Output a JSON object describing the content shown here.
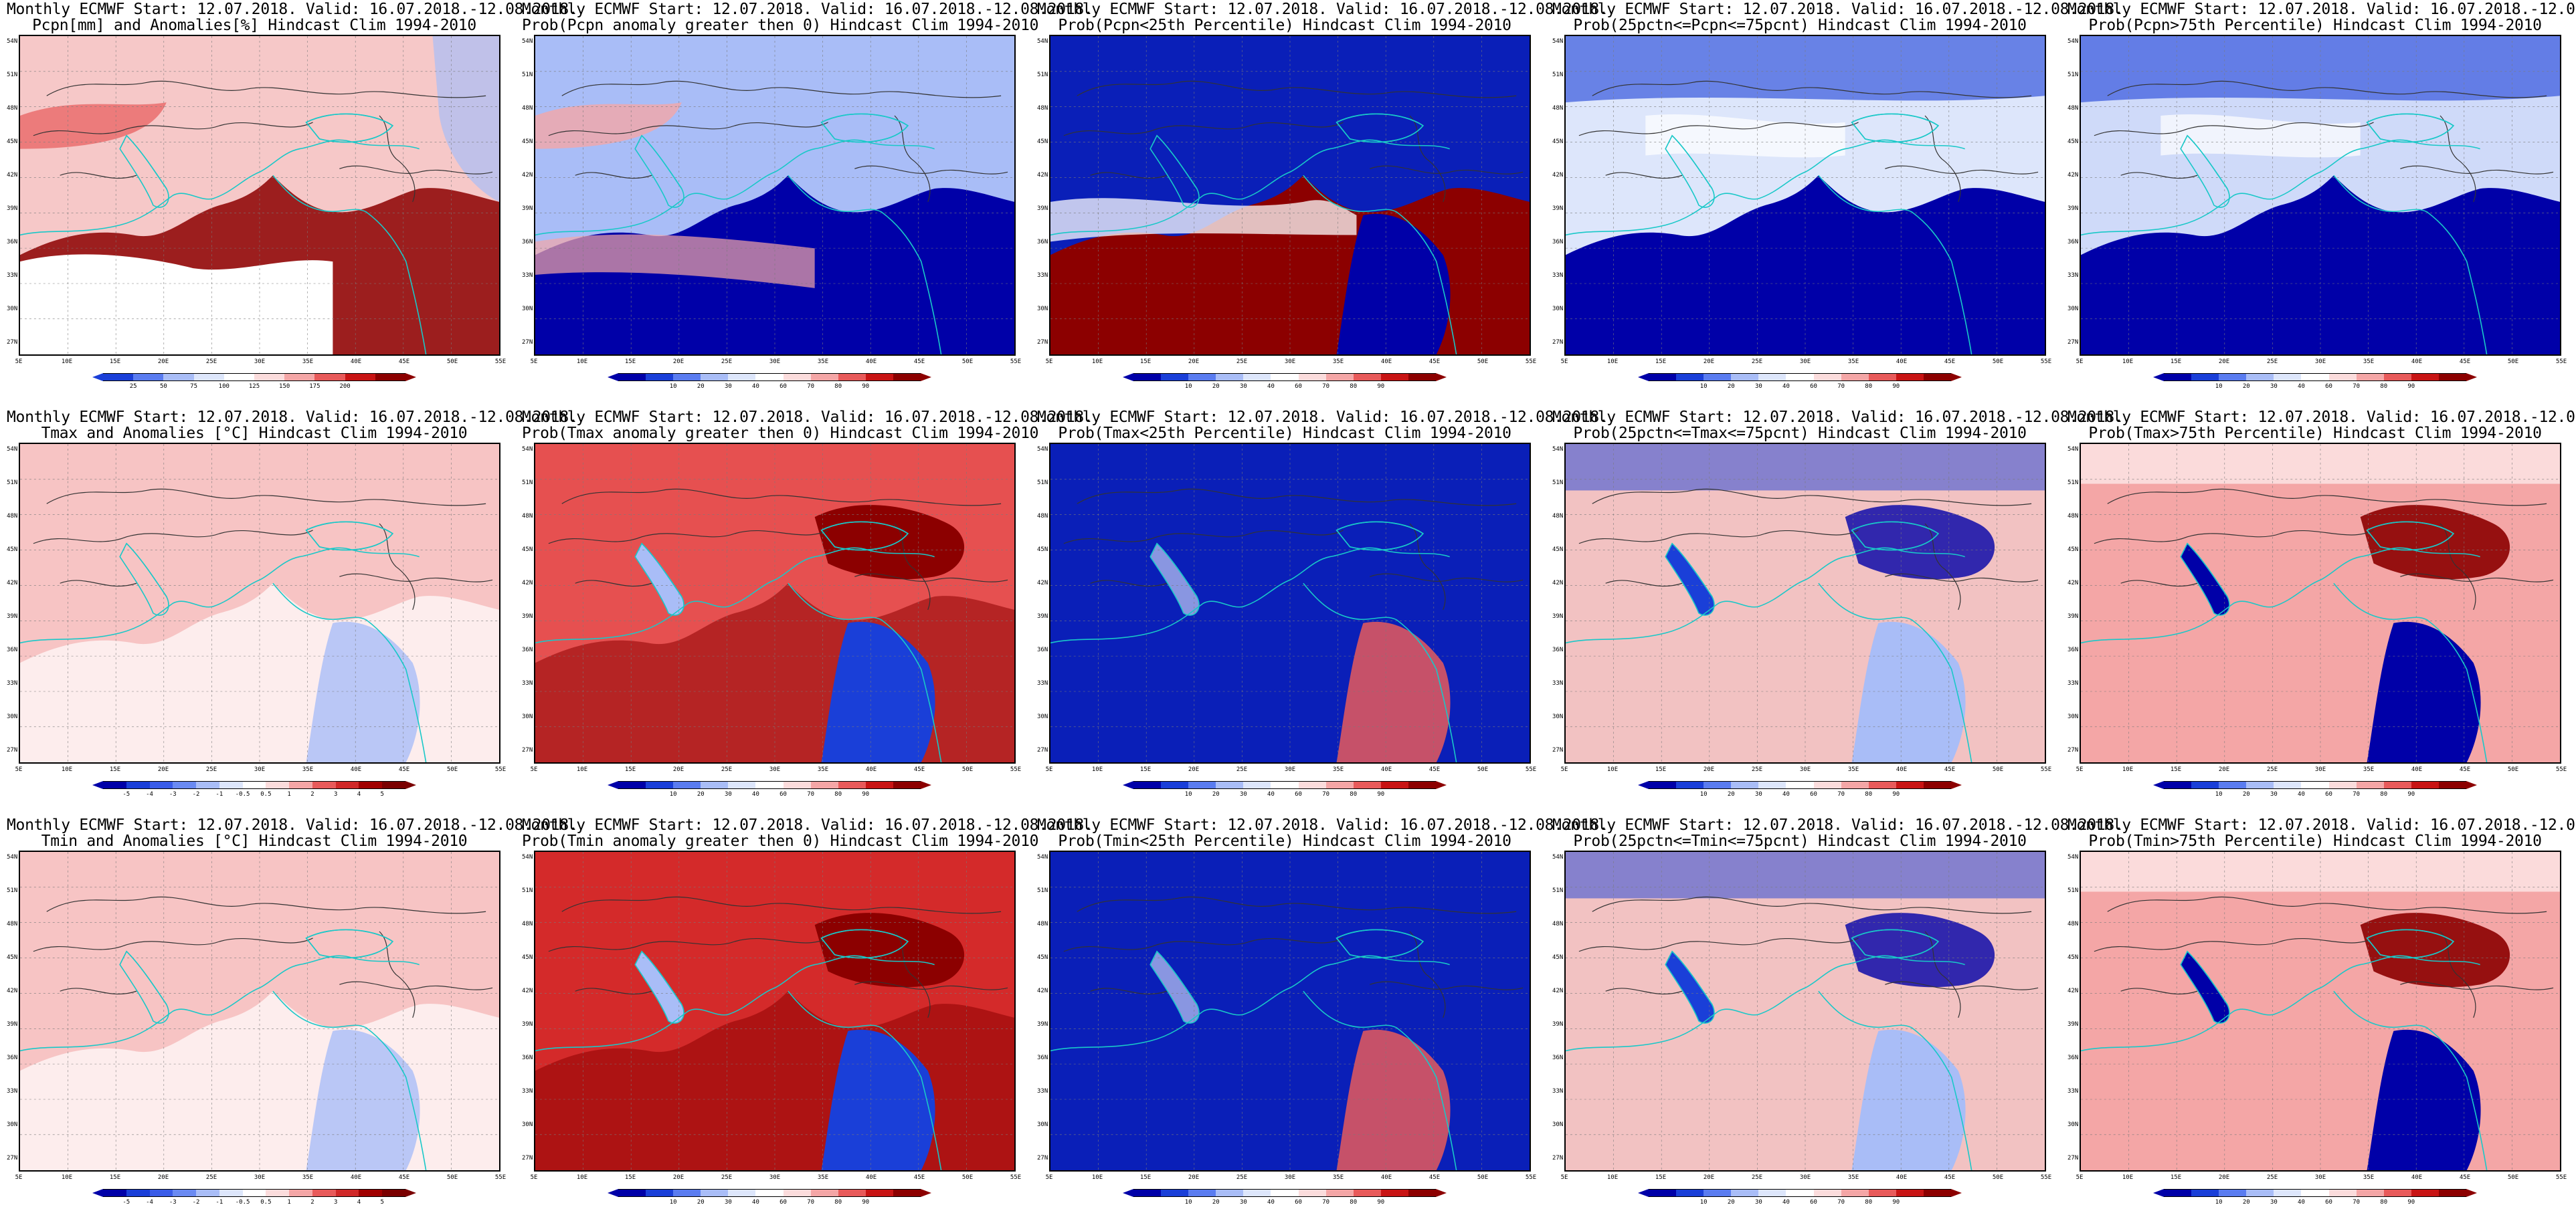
{
  "title_line1": "Monthly ECMWF Start: 12.07.2018. Valid: 16.07.2018.-12.08.2018.",
  "lat_labels": [
    "54N",
    "51N",
    "48N",
    "45N",
    "42N",
    "39N",
    "36N",
    "33N",
    "30N",
    "27N"
  ],
  "lon_labels": [
    "5E",
    "10E",
    "15E",
    "20E",
    "25E",
    "30E",
    "35E",
    "40E",
    "45E",
    "50E",
    "55E"
  ],
  "colorbars": {
    "prob": {
      "ticks": [
        "10",
        "20",
        "30",
        "40",
        "60",
        "70",
        "80",
        "90"
      ],
      "colors": [
        "#0000a8",
        "#1a3fd8",
        "#5a7cf0",
        "#a9bdf7",
        "#dde6fb",
        "#ffffff",
        "#fbdcdc",
        "#f4a6a6",
        "#e85a5a",
        "#c81414",
        "#8c0000"
      ]
    },
    "anom": {
      "ticks": [
        "-5",
        "-4",
        "-3",
        "-2",
        "-1",
        "-0.5",
        "0.5",
        "1",
        "2",
        "3",
        "4",
        "5"
      ],
      "colors": [
        "#0000a8",
        "#1a3fd8",
        "#3a5ce8",
        "#6a8af2",
        "#a9bdf7",
        "#dde6fb",
        "#ffffff",
        "#fbdcdc",
        "#f4a6a6",
        "#e85a5a",
        "#d02828",
        "#a00000",
        "#7a0000"
      ]
    },
    "pcpn": {
      "ticks": [
        "25",
        "50",
        "75",
        "100",
        "125",
        "150",
        "175",
        "200"
      ],
      "colors": [
        "#1a3fd8",
        "#5a7cf0",
        "#a9bdf7",
        "#dde6fb",
        "#ffffff",
        "#fbdcdc",
        "#f4a6a6",
        "#e85a5a",
        "#c81414",
        "#8c0000"
      ]
    }
  },
  "panels": [
    {
      "id": "p00",
      "title2": "Pcpn[mm] and Anomalies[%] Hindcast Clim 1994-2010",
      "colorbar": "pcpn",
      "palette": "mixed_pcpn",
      "base": "#f6c8c8"
    },
    {
      "id": "p01",
      "title2": "Prob(Pcpn anomaly greater then 0) Hindcast Clim 1994-2010",
      "colorbar": "prob",
      "palette": "mixed_blue",
      "base": "#a9bdf7"
    },
    {
      "id": "p02",
      "title2": "Prob(Pcpn<25th Percentile) Hindcast Clim 1994-2010",
      "colorbar": "prob",
      "palette": "blue_red_south",
      "base": "#0a1fb8"
    },
    {
      "id": "p03",
      "title2": "Prob(25pctn<=Pcpn<=75pcnt) Hindcast Clim 1994-2010",
      "colorbar": "prob",
      "palette": "mixed_blue_south",
      "base": "#dde6fb"
    },
    {
      "id": "p04",
      "title2": "Prob(Pcpn>75th Percentile) Hindcast Clim 1994-2010",
      "colorbar": "prob",
      "palette": "mixed_blue_south",
      "base": "#cfdaf9"
    },
    {
      "id": "p10",
      "title2": "Tmax and Anomalies [°C] Hindcast Clim 1994-2010",
      "colorbar": "anom",
      "palette": "pink",
      "base": "#f7c4c4"
    },
    {
      "id": "p11",
      "title2": "Prob(Tmax anomaly greater then 0) Hindcast Clim 1994-2010",
      "colorbar": "prob",
      "palette": "red",
      "base": "#e65050"
    },
    {
      "id": "p12",
      "title2": "Prob(Tmax<25th Percentile) Hindcast Clim 1994-2010",
      "colorbar": "prob",
      "palette": "blue",
      "base": "#0a1fb8"
    },
    {
      "id": "p13",
      "title2": "Prob(25pctn<=Tmax<=75pcnt) Hindcast Clim 1994-2010",
      "colorbar": "prob",
      "palette": "mixed",
      "base": "#f2c2c2"
    },
    {
      "id": "p14",
      "title2": "Prob(Tmax>75th Percentile) Hindcast Clim 1994-2010",
      "colorbar": "prob",
      "palette": "mixed_red",
      "base": "#f4a6a6"
    },
    {
      "id": "p20",
      "title2": "Tmin and Anomalies [°C] Hindcast Clim 1994-2010",
      "colorbar": "anom",
      "palette": "pink",
      "base": "#f7c4c4"
    },
    {
      "id": "p21",
      "title2": "Prob(Tmin anomaly greater then 0) Hindcast Clim 1994-2010",
      "colorbar": "prob",
      "palette": "red",
      "base": "#d42a2a"
    },
    {
      "id": "p22",
      "title2": "Prob(Tmin<25th Percentile) Hindcast Clim 1994-2010",
      "colorbar": "prob",
      "palette": "blue",
      "base": "#0a1fb8"
    },
    {
      "id": "p23",
      "title2": "Prob(25pctn<=Tmin<=75pcnt) Hindcast Clim 1994-2010",
      "colorbar": "prob",
      "palette": "mixed",
      "base": "#f2c2c2"
    },
    {
      "id": "p24",
      "title2": "Prob(Tmin>75th Percentile) Hindcast Clim 1994-2010",
      "colorbar": "prob",
      "palette": "mixed_red",
      "base": "#f4a6a6"
    }
  ]
}
